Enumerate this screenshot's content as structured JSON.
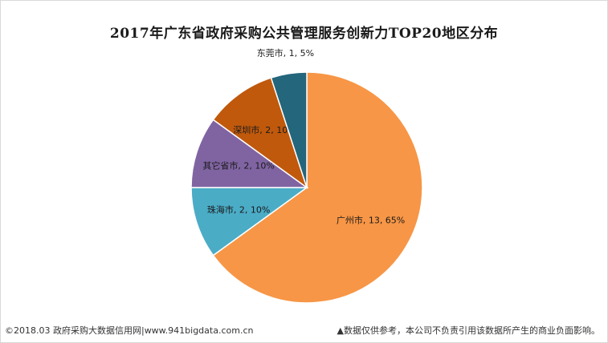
{
  "chart_data": {
    "type": "pie",
    "title": "2017年广东省政府采购公共管理服务创新力TOP20地区分布",
    "slices": [
      {
        "name": "广州市",
        "value": 13,
        "percent": "65%",
        "color": "#F79646"
      },
      {
        "name": "珠海市",
        "value": 2,
        "percent": "10%",
        "color": "#4BACC6"
      },
      {
        "name": "其它省市",
        "value": 2,
        "percent": "10%",
        "color": "#8064A2"
      },
      {
        "name": "深圳市",
        "value": 2,
        "percent": "10%",
        "color": "#C0590C"
      },
      {
        "name": "东莞市",
        "value": 1,
        "percent": "5%",
        "color": "#24667C"
      }
    ]
  },
  "footer": {
    "source": "©2018.03 政府采购大数据信用网|www.941bigdata.com.cn",
    "disclaimer": "▲数据仅供参考，本公司不负责引用该数据所产生的商业负面影响。"
  }
}
